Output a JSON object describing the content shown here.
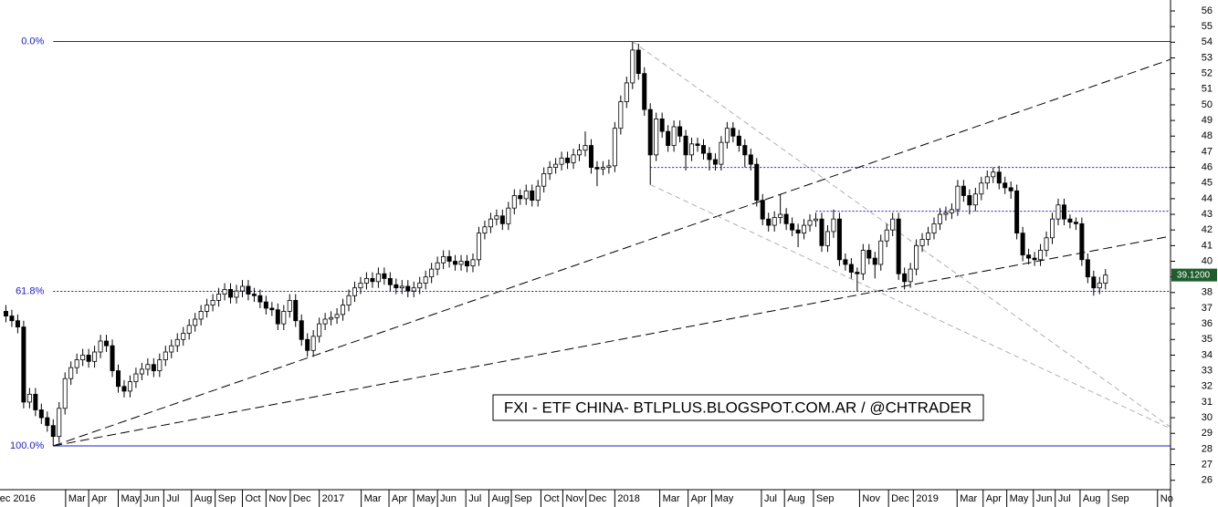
{
  "chart_data": {
    "type": "candlestick",
    "annotation": "FXI - ETF CHINA- BTLPLUS.BLOGSPOT.COM.AR / @CHTRADER",
    "xlim": [
      -1,
      197
    ],
    "ylim": [
      25.4,
      56.7
    ],
    "yticks": [
      26,
      27,
      28,
      29,
      30,
      31,
      32,
      33,
      34,
      35,
      36,
      37,
      38,
      39,
      40,
      41,
      42,
      43,
      44,
      45,
      46,
      47,
      48,
      49,
      50,
      51,
      52,
      53,
      54,
      55,
      56
    ],
    "xticks": [
      {
        "value": -1.5,
        "label": "ec 2016"
      },
      {
        "value": 10.1,
        "label": "Mar"
      },
      {
        "value": 14.0,
        "label": "Apr"
      },
      {
        "value": 19.0,
        "label": "May"
      },
      {
        "value": 22.8,
        "label": "Jun"
      },
      {
        "value": 26.7,
        "label": "Jul"
      },
      {
        "value": 31.4,
        "label": "Aug"
      },
      {
        "value": 35.4,
        "label": "Sep"
      },
      {
        "value": 40.0,
        "label": "Oct"
      },
      {
        "value": 44.0,
        "label": "Nov"
      },
      {
        "value": 48.1,
        "label": "Dec"
      },
      {
        "value": 53.0,
        "label": "2017"
      },
      {
        "value": 60.1,
        "label": "Mar"
      },
      {
        "value": 64.8,
        "label": "Apr"
      },
      {
        "value": 69.0,
        "label": "May"
      },
      {
        "value": 73.0,
        "label": "Jun"
      },
      {
        "value": 77.8,
        "label": "Jul"
      },
      {
        "value": 81.7,
        "label": "Aug"
      },
      {
        "value": 85.5,
        "label": "Sep"
      },
      {
        "value": 90.5,
        "label": "Oct"
      },
      {
        "value": 94.2,
        "label": "Nov"
      },
      {
        "value": 98.1,
        "label": "Dec"
      },
      {
        "value": 103.0,
        "label": "2018"
      },
      {
        "value": 110.6,
        "label": "Mar"
      },
      {
        "value": 115.4,
        "label": "Apr"
      },
      {
        "value": 119.4,
        "label": "May"
      },
      {
        "value": 127.8,
        "label": "Jul"
      },
      {
        "value": 131.7,
        "label": "Aug"
      },
      {
        "value": 136.6,
        "label": "Sep"
      },
      {
        "value": 144.4,
        "label": "Nov"
      },
      {
        "value": 149.3,
        "label": "Dec"
      },
      {
        "value": 153.5,
        "label": "2019"
      },
      {
        "value": 160.9,
        "label": "Mar"
      },
      {
        "value": 165.3,
        "label": "Apr"
      },
      {
        "value": 169.3,
        "label": "May"
      },
      {
        "value": 173.8,
        "label": "Jun"
      },
      {
        "value": 177.5,
        "label": "Jul"
      },
      {
        "value": 181.7,
        "label": "Aug"
      },
      {
        "value": 186.5,
        "label": "Sep"
      },
      {
        "value": 194.8,
        "label": "No"
      }
    ],
    "up_color": "#ffffff",
    "down_color": "#000000",
    "open": [
      36.8,
      36.5,
      36.2,
      35.8,
      31.0,
      31.5,
      30.5,
      30.0,
      29.5,
      28.8,
      30.6,
      32.5,
      33.2,
      33.7,
      34.0,
      33.6,
      34.2,
      34.9,
      34.6,
      33.0,
      32.0,
      31.7,
      32.3,
      32.8,
      33.1,
      33.4,
      33.0,
      33.7,
      34.2,
      34.6,
      35.0,
      35.4,
      35.9,
      36.3,
      36.8,
      37.2,
      37.5,
      37.9,
      38.2,
      37.7,
      38.1,
      38.4,
      37.9,
      37.8,
      37.4,
      37.0,
      36.9,
      36.0,
      36.8,
      37.5,
      36.2,
      35.0,
      34.3,
      35.2,
      36.0,
      36.3,
      36.4,
      36.6,
      37.2,
      37.8,
      38.3,
      38.6,
      38.9,
      38.7,
      39.2,
      38.9,
      38.5,
      38.3,
      38.4,
      38.1,
      38.3,
      38.6,
      39.0,
      39.5,
      39.9,
      40.3,
      40.0,
      39.8,
      40.0,
      39.7,
      40.1,
      41.8,
      42.2,
      42.7,
      42.9,
      42.4,
      43.4,
      44.2,
      44.0,
      44.5,
      43.9,
      44.8,
      45.6,
      46.0,
      46.2,
      46.6,
      46.3,
      46.8,
      47.1,
      47.4,
      46.0,
      45.9,
      46.0,
      46.1,
      48.5,
      50.2,
      51.4,
      53.5,
      52.0,
      49.7,
      46.8,
      49.1,
      48.3,
      47.4,
      48.6,
      48.0,
      46.8,
      47.5,
      47.4,
      46.9,
      46.5,
      46.2,
      47.6,
      48.5,
      48.0,
      47.4,
      46.8,
      46.2,
      43.9,
      42.7,
      42.3,
      42.8,
      43.0,
      42.4,
      42.0,
      41.8,
      42.3,
      42.6,
      42.7,
      41.0,
      41.9,
      42.7,
      40.1,
      39.8,
      39.3,
      39.2,
      40.7,
      40.2,
      39.8,
      41.3,
      42.0,
      42.7,
      39.2,
      38.7,
      39.5,
      41.0,
      41.4,
      41.8,
      42.4,
      43.0,
      43.1,
      43.3,
      44.8,
      44.2,
      43.6,
      44.3,
      45.0,
      45.4,
      45.7,
      45.0,
      44.7,
      44.5,
      41.8,
      40.4,
      40.2,
      40.1,
      40.7,
      41.5,
      42.7,
      43.6,
      42.7,
      42.5,
      42.4,
      40.1,
      39.0,
      38.3,
      38.6
    ],
    "high": [
      37.2,
      36.9,
      36.6,
      36.2,
      31.9,
      31.9,
      30.9,
      30.4,
      29.9,
      31.0,
      32.9,
      33.6,
      34.1,
      34.4,
      34.4,
      34.6,
      35.3,
      35.3,
      35.0,
      33.4,
      32.4,
      32.7,
      33.2,
      33.5,
      33.8,
      33.8,
      34.1,
      34.6,
      35.0,
      35.4,
      35.8,
      36.3,
      36.7,
      37.2,
      37.6,
      37.9,
      38.3,
      38.6,
      38.6,
      38.5,
      38.8,
      38.8,
      38.3,
      38.2,
      37.8,
      37.4,
      37.3,
      37.2,
      37.9,
      37.9,
      36.6,
      35.4,
      35.6,
      36.4,
      36.7,
      36.8,
      37.0,
      37.6,
      38.2,
      38.7,
      39.0,
      39.3,
      39.3,
      39.6,
      39.6,
      39.3,
      38.9,
      38.8,
      38.8,
      38.7,
      39.0,
      39.4,
      39.9,
      40.3,
      40.7,
      40.7,
      40.4,
      40.4,
      40.4,
      40.5,
      42.2,
      42.6,
      43.1,
      43.3,
      43.3,
      43.8,
      44.6,
      44.6,
      44.9,
      44.9,
      45.2,
      46.0,
      46.4,
      46.6,
      47.0,
      47.0,
      47.2,
      47.5,
      48.3,
      47.8,
      46.4,
      46.4,
      46.5,
      48.9,
      50.6,
      51.8,
      54.05,
      53.9,
      52.4,
      50.1,
      49.5,
      49.5,
      48.7,
      49.0,
      49.0,
      48.4,
      47.9,
      47.9,
      47.8,
      47.3,
      46.9,
      48.0,
      48.9,
      48.9,
      48.4,
      47.8,
      47.2,
      46.6,
      44.3,
      43.1,
      43.2,
      44.3,
      43.4,
      42.8,
      42.4,
      42.7,
      43.0,
      43.1,
      43.1,
      42.3,
      43.3,
      43.1,
      40.5,
      40.2,
      39.6,
      41.1,
      41.1,
      40.6,
      41.7,
      42.4,
      43.1,
      43.1,
      39.6,
      39.9,
      41.4,
      41.8,
      42.2,
      42.8,
      43.4,
      43.5,
      43.7,
      45.2,
      45.2,
      44.6,
      44.7,
      45.4,
      45.8,
      46.0,
      46.1,
      45.4,
      45.1,
      44.9,
      42.2,
      40.8,
      40.6,
      41.1,
      41.9,
      43.1,
      44.0,
      44.0,
      43.0,
      42.8,
      42.8,
      40.5,
      39.4,
      39.0,
      39.5
    ],
    "low": [
      36.1,
      35.8,
      35.4,
      30.6,
      30.6,
      30.1,
      29.6,
      29.1,
      28.2,
      28.4,
      30.2,
      32.1,
      32.8,
      33.3,
      33.2,
      33.2,
      33.8,
      34.2,
      32.6,
      31.6,
      31.3,
      31.3,
      31.9,
      32.4,
      32.7,
      32.6,
      32.6,
      33.3,
      33.8,
      34.2,
      34.6,
      35.0,
      35.5,
      35.9,
      36.4,
      36.8,
      37.1,
      37.5,
      37.3,
      37.3,
      37.7,
      37.5,
      37.4,
      37.0,
      36.6,
      36.5,
      35.6,
      35.6,
      36.4,
      35.8,
      34.6,
      33.9,
      33.9,
      34.8,
      35.6,
      35.9,
      36.0,
      36.2,
      36.8,
      37.4,
      37.9,
      38.2,
      38.3,
      38.3,
      38.5,
      38.1,
      37.9,
      37.9,
      37.7,
      37.7,
      37.9,
      38.2,
      38.6,
      39.1,
      39.5,
      39.6,
      39.4,
      39.4,
      39.3,
      39.3,
      39.7,
      41.4,
      41.8,
      42.3,
      42.0,
      42.0,
      43.0,
      43.6,
      43.6,
      43.5,
      43.5,
      44.4,
      45.2,
      45.6,
      45.8,
      45.9,
      45.9,
      46.4,
      46.7,
      45.6,
      44.8,
      45.5,
      45.6,
      45.7,
      48.1,
      49.8,
      51.0,
      51.6,
      49.3,
      44.9,
      46.4,
      47.9,
      47.0,
      47.0,
      47.6,
      45.8,
      46.4,
      47.0,
      46.5,
      45.8,
      45.8,
      45.8,
      47.2,
      47.6,
      47.0,
      46.0,
      45.8,
      43.5,
      42.3,
      41.9,
      41.9,
      42.4,
      42.0,
      41.6,
      40.9,
      41.4,
      41.9,
      42.2,
      40.6,
      40.6,
      41.5,
      39.7,
      39.4,
      38.9,
      38.1,
      38.8,
      39.8,
      38.9,
      39.4,
      40.9,
      41.6,
      38.8,
      38.2,
      38.3,
      39.1,
      40.6,
      41.0,
      41.4,
      42.0,
      42.6,
      42.7,
      42.9,
      43.8,
      43.0,
      43.2,
      43.9,
      44.6,
      45.0,
      44.6,
      44.3,
      44.0,
      41.4,
      40.0,
      39.8,
      39.7,
      39.7,
      40.3,
      41.1,
      42.3,
      42.3,
      42.1,
      42.0,
      39.7,
      38.6,
      37.8,
      37.9,
      38.2
    ],
    "close": [
      36.5,
      36.2,
      35.8,
      31.0,
      31.5,
      30.5,
      30.0,
      29.5,
      28.8,
      30.6,
      32.5,
      33.2,
      33.7,
      34.0,
      33.6,
      34.2,
      34.9,
      34.6,
      33.0,
      32.0,
      31.7,
      32.3,
      32.8,
      33.1,
      33.4,
      33.0,
      33.7,
      34.2,
      34.6,
      35.0,
      35.4,
      35.9,
      36.3,
      36.8,
      37.2,
      37.5,
      37.9,
      38.2,
      37.7,
      38.1,
      38.4,
      37.9,
      37.8,
      37.4,
      37.0,
      36.9,
      36.0,
      36.8,
      37.5,
      36.2,
      35.0,
      34.3,
      35.2,
      36.0,
      36.3,
      36.4,
      36.6,
      37.2,
      37.8,
      38.3,
      38.6,
      38.9,
      38.7,
      39.2,
      38.9,
      38.5,
      38.3,
      38.4,
      38.1,
      38.3,
      38.6,
      39.0,
      39.5,
      39.9,
      40.3,
      40.0,
      39.8,
      40.0,
      39.7,
      40.1,
      41.8,
      42.2,
      42.7,
      42.9,
      42.4,
      43.4,
      44.2,
      44.0,
      44.5,
      43.9,
      44.8,
      45.6,
      46.0,
      46.2,
      46.6,
      46.3,
      46.8,
      47.1,
      47.4,
      46.0,
      45.9,
      46.0,
      46.1,
      48.5,
      50.2,
      51.4,
      53.5,
      52.0,
      49.7,
      46.8,
      49.1,
      48.3,
      47.4,
      48.6,
      48.0,
      46.8,
      47.5,
      47.4,
      46.9,
      46.5,
      46.2,
      47.6,
      48.5,
      48.0,
      47.4,
      46.8,
      46.2,
      43.9,
      42.7,
      42.3,
      42.8,
      43.0,
      42.4,
      42.0,
      41.8,
      42.3,
      42.6,
      42.7,
      41.0,
      41.9,
      42.7,
      40.1,
      39.8,
      39.3,
      39.2,
      40.7,
      40.2,
      39.8,
      41.3,
      42.0,
      42.7,
      39.2,
      38.7,
      39.5,
      41.0,
      41.4,
      41.8,
      42.4,
      43.0,
      43.1,
      43.3,
      44.8,
      44.2,
      43.6,
      44.3,
      45.0,
      45.4,
      45.7,
      45.0,
      44.7,
      44.5,
      41.8,
      40.4,
      40.2,
      40.1,
      40.7,
      41.5,
      42.7,
      43.6,
      42.7,
      42.5,
      42.4,
      40.1,
      39.0,
      38.3,
      38.6,
      39.12
    ],
    "last_price": {
      "value": 39.12,
      "label": "39.1200"
    },
    "fib_x": [
      8,
      197
    ],
    "fib_levels": [
      {
        "label": "0.0%",
        "value": 54.05,
        "style": "solid"
      },
      {
        "label": "61.8%",
        "value": 38.08,
        "style": "dotted"
      },
      {
        "label": "100.0%",
        "value": 28.2,
        "style": "solid"
      }
    ],
    "fib_color": "#1c1cc8",
    "support_lines": [
      {
        "x": [
          109,
          197
        ],
        "y": 46.0
      },
      {
        "x": [
          137,
          197
        ],
        "y": 43.2
      }
    ],
    "trendlines": [
      {
        "x": [
          8,
          197
        ],
        "y": [
          28.2,
          52.9
        ],
        "color": "#000000"
      },
      {
        "x": [
          8,
          197
        ],
        "y": [
          28.2,
          41.6
        ],
        "color": "#000000"
      },
      {
        "x": [
          106,
          197
        ],
        "y": [
          54.05,
          29.4
        ],
        "color": "#b0b0b0"
      },
      {
        "x": [
          109,
          197
        ],
        "y": [
          44.9,
          29.3
        ],
        "color": "#b0b0b0"
      }
    ]
  }
}
